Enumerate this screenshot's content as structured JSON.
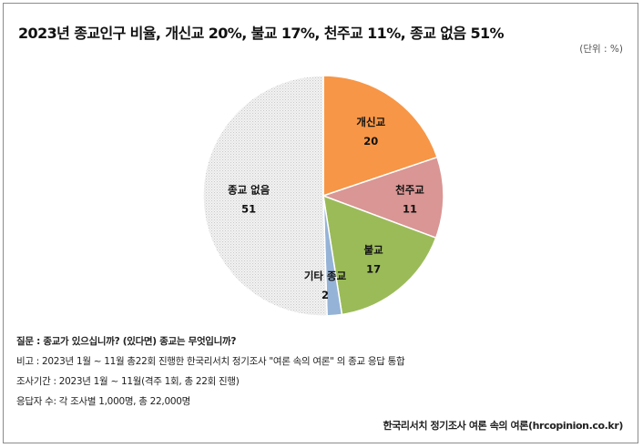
{
  "title": "2023년 종교인구 비율, 개신교 20%, 불교 17%, 천주교 11%, 종교 없음 51%",
  "unit": "(단위 : %)",
  "chart_data": {
    "type": "pie",
    "categories": [
      "개신교",
      "천주교",
      "불교",
      "기타 종교",
      "종교 없음"
    ],
    "values": [
      20,
      11,
      17,
      2,
      51
    ],
    "colors": [
      "#f79646",
      "#d99694",
      "#9bbb59",
      "#95b3d7",
      "#ececec"
    ],
    "data_labels": true,
    "legend": "none"
  },
  "notes": {
    "question": "질문 : 종교가 있으십니까? (있다면) 종교는 무엇입니까?",
    "remark": "비고 : 2023년 1월 ~ 11월 총22회 진행한 한국리서치 정기조사 \"여론 속의 여론\" 의 종교 응답 통합",
    "period": "조사기간 : 2023년 1월 ~ 11월(격주 1회, 총 22회 진행)",
    "respondents": "응답자 수: 각 조사별 1,000명, 총 22,000명"
  },
  "source": "한국리서치 정기조사 여론 속의 여론(hrcopinion.co.kr)"
}
